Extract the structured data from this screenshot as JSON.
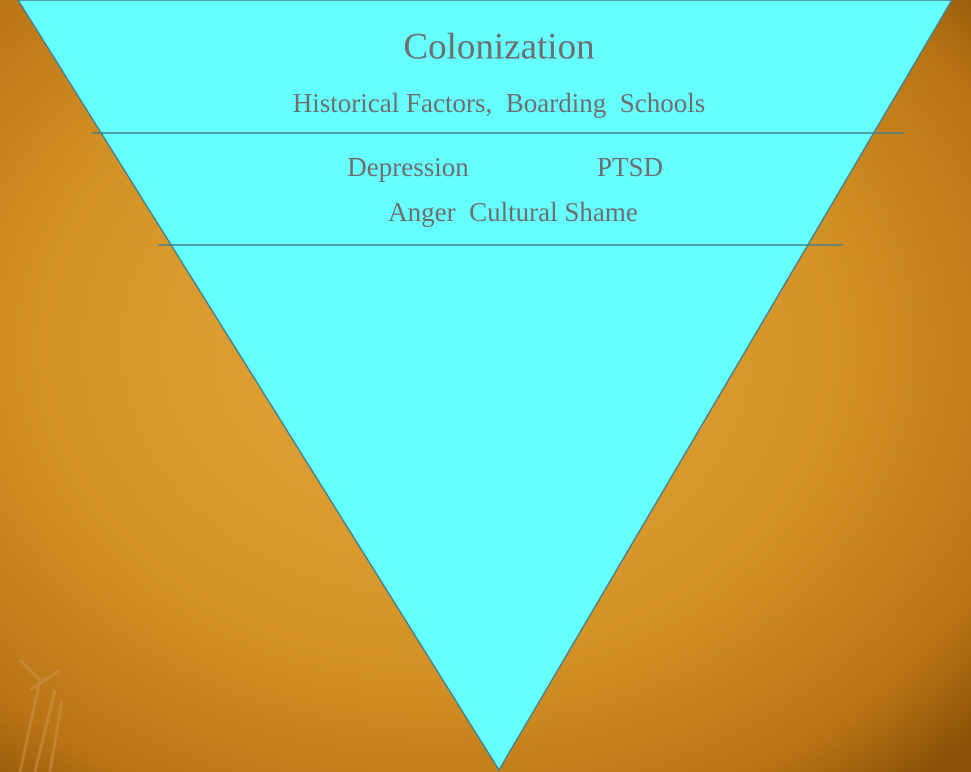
{
  "diagram": {
    "top": {
      "title": "Colonization",
      "subtitle": "Historical Factors,  Boarding  Schools"
    },
    "middle": {
      "lines": [
        [
          "Depression",
          "PTSD"
        ],
        [
          "Anger  Cultural Shame"
        ]
      ]
    }
  }
}
